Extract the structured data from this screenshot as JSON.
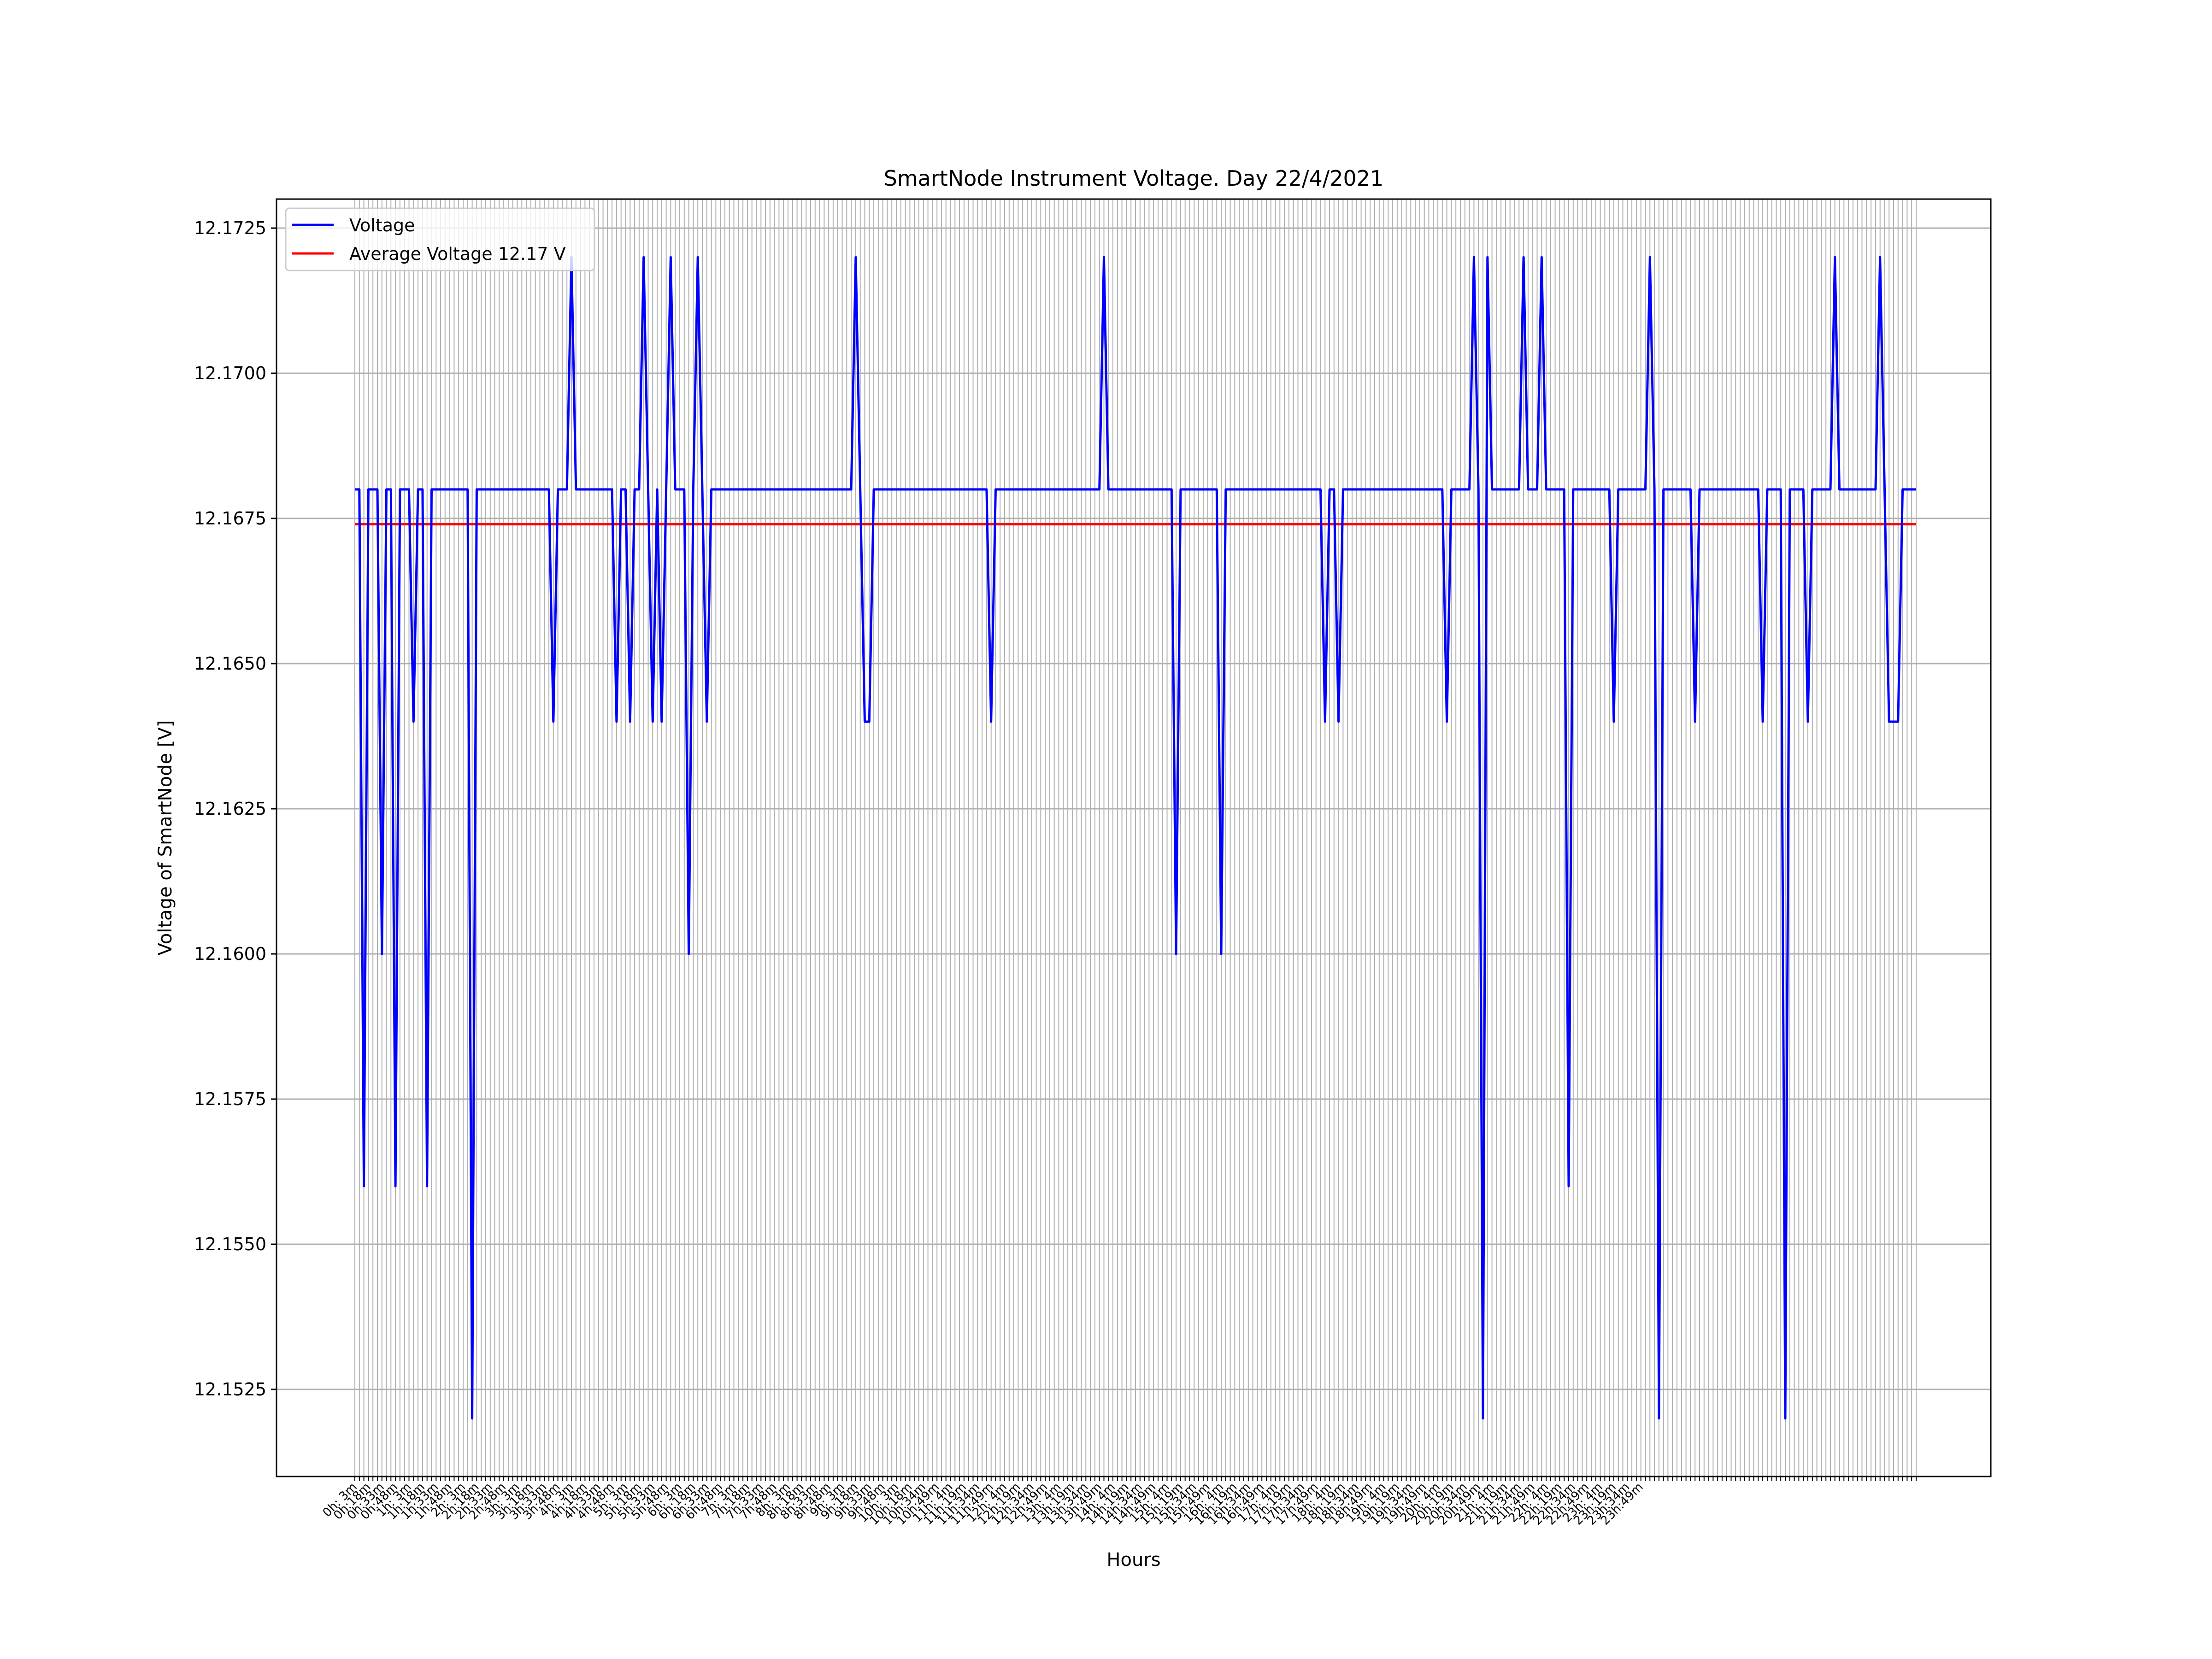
{
  "chart_data": {
    "type": "line",
    "title": "SmartNode Instrument Voltage. Day 22/4/2021",
    "xlabel": "Hours",
    "ylabel": "Voltage of SmartNode [V]",
    "ylim": [
      12.151,
      12.173
    ],
    "yticks": [
      "12.1525",
      "12.1550",
      "12.1575",
      "12.1600",
      "12.1625",
      "12.1650",
      "12.1675",
      "12.1700",
      "12.1725"
    ],
    "grid": true,
    "legend_position": "upper-left",
    "x_interval_minutes": 5,
    "x_tick_label_every_3": [
      "0h: 3m",
      "0h:18m",
      "0h:33m",
      "0h:48m",
      "1h: 3m",
      "1h:18m",
      "1h:33m",
      "1h:48m",
      "2h: 3m",
      "2h:18m",
      "2h:33m",
      "2h:48m",
      "3h: 3m",
      "3h:18m",
      "3h:33m",
      "3h:48m",
      "4h: 3m",
      "4h:18m",
      "4h:33m",
      "4h:48m",
      "5h: 3m",
      "5h:18m",
      "5h:33m",
      "5h:48m",
      "6h: 3m",
      "6h:18m",
      "6h:33m",
      "6h:48m",
      "7h: 3m",
      "7h:18m",
      "7h:33m",
      "7h:48m",
      "8h: 3m",
      "8h:18m",
      "8h:33m",
      "8h:48m",
      "9h: 3m",
      "9h:18m",
      "9h:33m",
      "9h:48m",
      "10h: 3m",
      "10h:18m",
      "10h:34m",
      "10h:49m",
      "11h: 4m",
      "11h:19m",
      "11h:34m",
      "11h:49m",
      "12h: 4m",
      "12h:19m",
      "12h:34m",
      "12h:49m",
      "13h: 4m",
      "13h:19m",
      "13h:34m",
      "13h:49m",
      "14h: 4m",
      "14h:19m",
      "14h:34m",
      "14h:49m",
      "15h: 4m",
      "15h:19m",
      "15h:34m",
      "15h:49m",
      "16h: 4m",
      "16h:19m",
      "16h:34m",
      "16h:49m",
      "17h: 4m",
      "17h:19m",
      "17h:34m",
      "17h:49m",
      "18h: 4m",
      "18h:19m",
      "18h:34m",
      "18h:49m",
      "19h: 4m",
      "19h:19m",
      "19h:34m",
      "19h:49m",
      "20h: 4m",
      "20h:19m",
      "20h:34m",
      "20h:49m",
      "21h: 4m",
      "21h:19m",
      "21h:34m",
      "21h:49m",
      "22h: 4m",
      "22h:19m",
      "22h:34m",
      "22h:49m",
      "23h: 4m",
      "23h:19m",
      "23h:34m",
      "23h:49m"
    ],
    "series": [
      {
        "name": "Voltage",
        "color": "#0000ff",
        "values": [
          12.168,
          12.168,
          12.156,
          12.168,
          12.168,
          12.168,
          12.16,
          12.168,
          12.168,
          12.156,
          12.168,
          12.168,
          12.168,
          12.164,
          12.168,
          12.168,
          12.156,
          12.168,
          12.168,
          12.168,
          12.168,
          12.168,
          12.168,
          12.168,
          12.168,
          12.168,
          12.152,
          12.168,
          12.168,
          12.168,
          12.168,
          12.168,
          12.168,
          12.168,
          12.168,
          12.168,
          12.168,
          12.168,
          12.168,
          12.168,
          12.168,
          12.168,
          12.168,
          12.168,
          12.164,
          12.168,
          12.168,
          12.168,
          12.172,
          12.168,
          12.168,
          12.168,
          12.168,
          12.168,
          12.168,
          12.168,
          12.168,
          12.168,
          12.164,
          12.168,
          12.168,
          12.164,
          12.168,
          12.168,
          12.172,
          12.168,
          12.164,
          12.168,
          12.164,
          12.168,
          12.172,
          12.168,
          12.168,
          12.168,
          12.16,
          12.168,
          12.172,
          12.168,
          12.164,
          12.168,
          12.168,
          12.168,
          12.168,
          12.168,
          12.168,
          12.168,
          12.168,
          12.168,
          12.168,
          12.168,
          12.168,
          12.168,
          12.168,
          12.168,
          12.168,
          12.168,
          12.168,
          12.168,
          12.168,
          12.168,
          12.168,
          12.168,
          12.168,
          12.168,
          12.168,
          12.168,
          12.168,
          12.168,
          12.168,
          12.168,
          12.168,
          12.172,
          12.168,
          12.164,
          12.164,
          12.168,
          12.168,
          12.168,
          12.168,
          12.168,
          12.168,
          12.168,
          12.168,
          12.168,
          12.168,
          12.168,
          12.168,
          12.168,
          12.168,
          12.168,
          12.168,
          12.168,
          12.168,
          12.168,
          12.168,
          12.168,
          12.168,
          12.168,
          12.168,
          12.168,
          12.168,
          12.164,
          12.168,
          12.168,
          12.168,
          12.168,
          12.168,
          12.168,
          12.168,
          12.168,
          12.168,
          12.168,
          12.168,
          12.168,
          12.168,
          12.168,
          12.168,
          12.168,
          12.168,
          12.168,
          12.168,
          12.168,
          12.168,
          12.168,
          12.168,
          12.168,
          12.172,
          12.168,
          12.168,
          12.168,
          12.168,
          12.168,
          12.168,
          12.168,
          12.168,
          12.168,
          12.168,
          12.168,
          12.168,
          12.168,
          12.168,
          12.168,
          12.16,
          12.168,
          12.168,
          12.168,
          12.168,
          12.168,
          12.168,
          12.168,
          12.168,
          12.168,
          12.16,
          12.168,
          12.168,
          12.168,
          12.168,
          12.168,
          12.168,
          12.168,
          12.168,
          12.168,
          12.168,
          12.168,
          12.168,
          12.168,
          12.168,
          12.168,
          12.168,
          12.168,
          12.168,
          12.168,
          12.168,
          12.168,
          12.168,
          12.164,
          12.168,
          12.168,
          12.164,
          12.168,
          12.168,
          12.168,
          12.168,
          12.168,
          12.168,
          12.168,
          12.168,
          12.168,
          12.168,
          12.168,
          12.168,
          12.168,
          12.168,
          12.168,
          12.168,
          12.168,
          12.168,
          12.168,
          12.168,
          12.168,
          12.168,
          12.168,
          12.164,
          12.168,
          12.168,
          12.168,
          12.168,
          12.168,
          12.172,
          12.168,
          12.152,
          12.172,
          12.168,
          12.168,
          12.168,
          12.168,
          12.168,
          12.168,
          12.168,
          12.172,
          12.168,
          12.168,
          12.168,
          12.172,
          12.168,
          12.168,
          12.168,
          12.168,
          12.168,
          12.156,
          12.168,
          12.168,
          12.168,
          12.168,
          12.168,
          12.168,
          12.168,
          12.168,
          12.168,
          12.164,
          12.168,
          12.168,
          12.168,
          12.168,
          12.168,
          12.168,
          12.168,
          12.172,
          12.168,
          12.152,
          12.168,
          12.168,
          12.168,
          12.168,
          12.168,
          12.168,
          12.168,
          12.164,
          12.168,
          12.168,
          12.168,
          12.168,
          12.168,
          12.168,
          12.168,
          12.168,
          12.168,
          12.168,
          12.168,
          12.168,
          12.168,
          12.168,
          12.164,
          12.168,
          12.168,
          12.168,
          12.168,
          12.152,
          12.168,
          12.168,
          12.168,
          12.168,
          12.164,
          12.168,
          12.168,
          12.168,
          12.168,
          12.168,
          12.172,
          12.168,
          12.168,
          12.168,
          12.168,
          12.168,
          12.168,
          12.168,
          12.168,
          12.168,
          12.172,
          12.168,
          12.164,
          12.164,
          12.164,
          12.168,
          12.168,
          12.168,
          12.168
        ]
      },
      {
        "name": "Average Voltage 12.17 V",
        "color": "#ff0000",
        "constant": 12.1674
      }
    ]
  }
}
